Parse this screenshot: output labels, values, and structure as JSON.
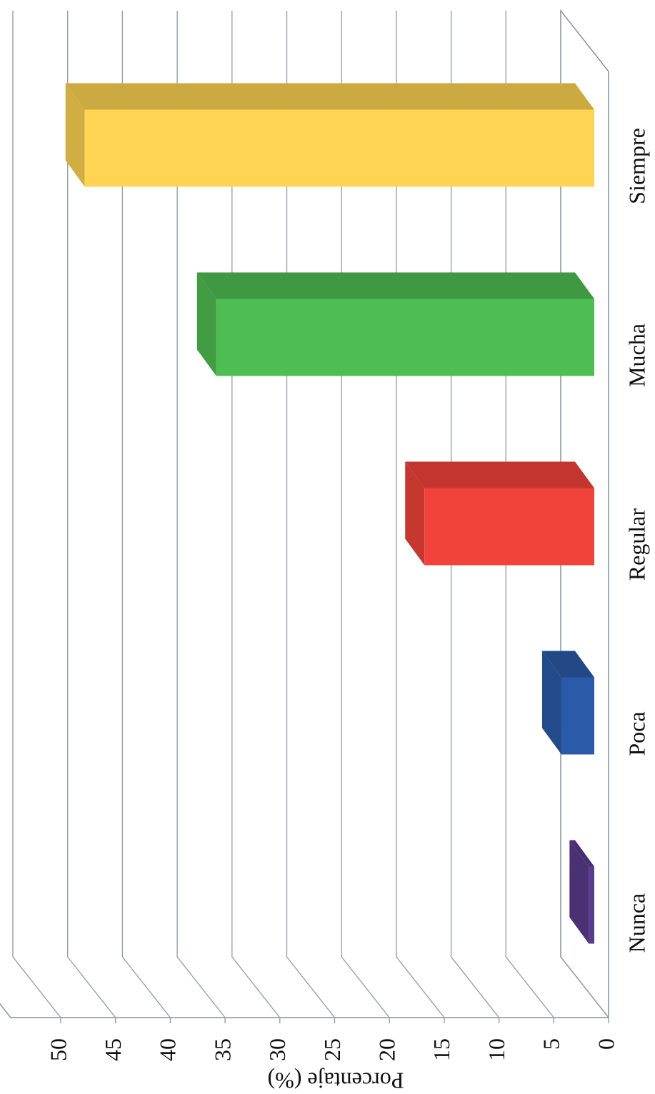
{
  "chart_data": {
    "type": "bar",
    "categories": [
      "Nunca",
      "Poca",
      "Regular",
      "Mucha",
      "Siempre"
    ],
    "values": [
      0.5,
      3,
      15.5,
      34.5,
      46.5
    ],
    "colors": [
      "#5a3c8c",
      "#2b5ba8",
      "#f2433b",
      "#4fbe52",
      "#ffd452"
    ],
    "ylabel": "Porcentaje (%)",
    "ylim": [
      0,
      50
    ],
    "yticks": [
      0,
      5,
      10,
      15,
      20,
      25,
      30,
      35,
      40,
      45,
      50
    ],
    "grid": true
  }
}
